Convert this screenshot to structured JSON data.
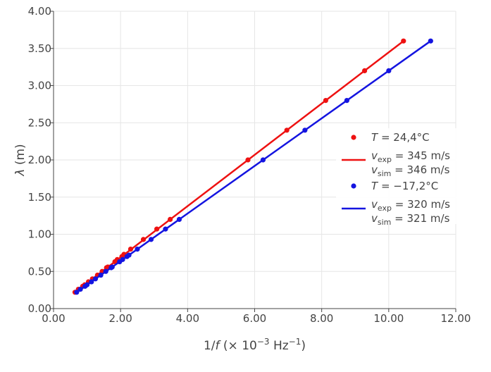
{
  "chart_data": {
    "type": "scatter",
    "xlim": [
      0,
      12
    ],
    "ylim": [
      0,
      4
    ],
    "x_ticks": [
      "0.00",
      "2.00",
      "4.00",
      "6.00",
      "8.00",
      "10.00",
      "12.00"
    ],
    "y_ticks": [
      "0.00",
      "0.50",
      "1.00",
      "1.50",
      "2.00",
      "2.50",
      "3.00",
      "3.50",
      "4.00"
    ],
    "xlabel": {
      "main": "1/",
      "italic": "f",
      "rest": " (× 10",
      "sup": "−3",
      "unit": " Hz",
      "unit_sup": "−1",
      "close": ")"
    },
    "ylabel": {
      "italic": "λ",
      "rest": " (m)"
    },
    "grid": true,
    "legend_position": "right",
    "series": [
      {
        "name": "T = 24,4°C",
        "name_parts": {
          "var": "T",
          "rest": " = 24,4°C"
        },
        "color": "#ee1111",
        "x": [
          0.64,
          0.74,
          0.87,
          0.93,
          1.04,
          1.16,
          1.31,
          1.45,
          1.58,
          1.62,
          1.83,
          1.9,
          2.04,
          2.1,
          2.3,
          2.68,
          3.08,
          3.48,
          5.8,
          6.96,
          8.12,
          9.28,
          10.44
        ],
        "y": [
          0.22,
          0.26,
          0.3,
          0.32,
          0.36,
          0.4,
          0.45,
          0.5,
          0.55,
          0.56,
          0.63,
          0.66,
          0.7,
          0.73,
          0.8,
          0.93,
          1.07,
          1.2,
          2.0,
          2.4,
          2.8,
          3.2,
          3.6
        ]
      },
      {
        "name": "fit v_exp = 345 m/s, v_sim = 346 m/s",
        "fit_of": 0,
        "color": "#ee1111",
        "x": [
          0.64,
          10.44
        ],
        "y": [
          0.22,
          3.6
        ],
        "lines": [
          {
            "v": "v",
            "sub": "exp",
            "rest": " = 345 m/s"
          },
          {
            "v": "v",
            "sub": "sim",
            "rest": " = 346 m/s"
          }
        ]
      },
      {
        "name": "T = −17,2°C",
        "name_parts": {
          "var": "T",
          "rest": " = −17,2°C"
        },
        "color": "#1414e0",
        "x": [
          0.69,
          0.8,
          0.94,
          1.0,
          1.13,
          1.25,
          1.41,
          1.56,
          1.72,
          1.75,
          1.97,
          2.06,
          2.19,
          2.25,
          2.5,
          2.91,
          3.34,
          3.75,
          6.25,
          7.5,
          8.75,
          10.0,
          11.25
        ],
        "y": [
          0.22,
          0.26,
          0.3,
          0.32,
          0.36,
          0.4,
          0.45,
          0.5,
          0.55,
          0.56,
          0.63,
          0.66,
          0.7,
          0.72,
          0.8,
          0.93,
          1.07,
          1.2,
          2.0,
          2.4,
          2.8,
          3.2,
          3.6
        ]
      },
      {
        "name": "fit v_exp = 320 m/s, v_sim = 321 m/s",
        "fit_of": 2,
        "color": "#1414e0",
        "x": [
          0.69,
          11.25
        ],
        "y": [
          0.22,
          3.6
        ],
        "lines": [
          {
            "v": "v",
            "sub": "exp",
            "rest": " = 320 m/s"
          },
          {
            "v": "v",
            "sub": "sim",
            "rest": " = 321 m/s"
          }
        ]
      }
    ]
  }
}
